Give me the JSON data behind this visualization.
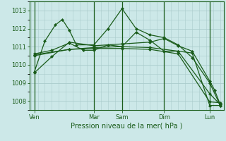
{
  "background_color": "#cce8e8",
  "grid_color": "#aacccc",
  "line_color": "#1a5c1a",
  "title": "Pression niveau de la mer( hPa )",
  "ylim": [
    1007.5,
    1013.5
  ],
  "yticks": [
    1008,
    1009,
    1010,
    1011,
    1012,
    1013
  ],
  "xlim": [
    -0.2,
    27.5
  ],
  "x_day_labels": [
    "Ven",
    "Mar",
    "Sam",
    "Dim",
    "Lun"
  ],
  "x_day_positions": [
    0.5,
    9,
    13,
    19,
    25.5
  ],
  "x_vline_positions": [
    0.5,
    9,
    13,
    19,
    25.5
  ],
  "series": [
    {
      "x": [
        0.5,
        2,
        3.5,
        4.5,
        5.5,
        6.5,
        9,
        11,
        13,
        15,
        17,
        19,
        21,
        23,
        25.5,
        27
      ],
      "y": [
        1009.6,
        1011.3,
        1012.2,
        1012.5,
        1011.9,
        1011.1,
        1011.1,
        1012.0,
        1013.1,
        1012.0,
        1011.65,
        1011.5,
        1011.1,
        1010.4,
        1009.0,
        1007.75
      ]
    },
    {
      "x": [
        0.5,
        3,
        5.5,
        7.5,
        9,
        11,
        13,
        15,
        17,
        19,
        21,
        23,
        25.5,
        27
      ],
      "y": [
        1010.6,
        1010.8,
        1011.2,
        1010.8,
        1010.8,
        1011.1,
        1011.0,
        1011.8,
        1011.35,
        1010.75,
        1010.75,
        1010.65,
        1007.75,
        1007.75
      ]
    },
    {
      "x": [
        0.5,
        5.5,
        9,
        13,
        17,
        21,
        25.5,
        27
      ],
      "y": [
        1010.55,
        1010.85,
        1010.95,
        1011.0,
        1010.95,
        1010.75,
        1008.4,
        1007.8
      ]
    },
    {
      "x": [
        0.5,
        5.5,
        9,
        13,
        17,
        21,
        25.5,
        27
      ],
      "y": [
        1010.5,
        1010.85,
        1010.9,
        1010.9,
        1010.85,
        1010.6,
        1007.95,
        1007.9
      ]
    },
    {
      "x": [
        0.5,
        3,
        5.5,
        9,
        13,
        17,
        19,
        21,
        23,
        25.5,
        26.2,
        27
      ],
      "y": [
        1009.55,
        1010.45,
        1011.25,
        1011.05,
        1011.15,
        1011.25,
        1011.45,
        1011.05,
        1010.75,
        1009.1,
        1008.6,
        1007.8
      ]
    }
  ]
}
